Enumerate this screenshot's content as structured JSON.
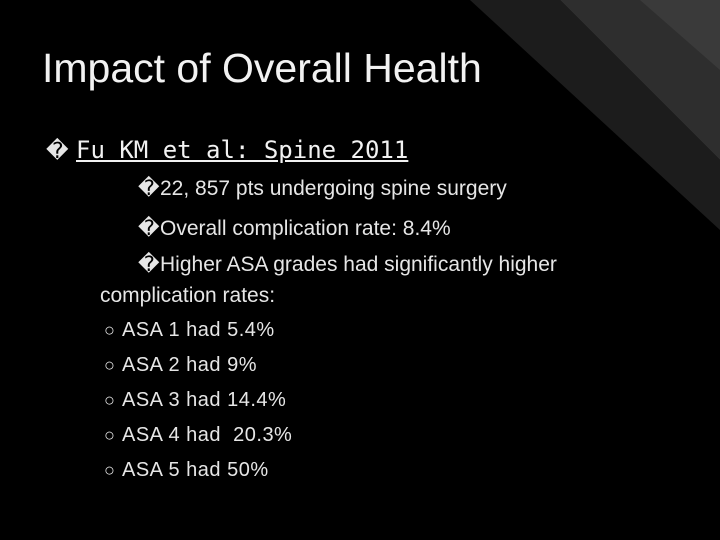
{
  "title": "Impact of Overall Health",
  "level1": {
    "bullet": "�",
    "text": "Fu KM et al: Spine 2011"
  },
  "level2": [
    {
      "bullet": "�",
      "text": "22, 857 pts undergoing spine surgery"
    },
    {
      "bullet": "�",
      "text": "Overall complication rate: 8.4%"
    },
    {
      "bullet": "�",
      "text": "Higher ASA grades had significantly higher"
    },
    {
      "bullet": null,
      "text": "complication rates:"
    }
  ],
  "level3": [
    {
      "bullet": "○",
      "text": "ASA 1 had 5.4%"
    },
    {
      "bullet": "○",
      "text": "ASA 2 had 9%"
    },
    {
      "bullet": "○",
      "text": "ASA 3 had 14.4%"
    },
    {
      "bullet": "○",
      "text": "ASA 4 had  20.3%"
    },
    {
      "bullet": "○",
      "text": "ASA 5 had 50%"
    }
  ]
}
